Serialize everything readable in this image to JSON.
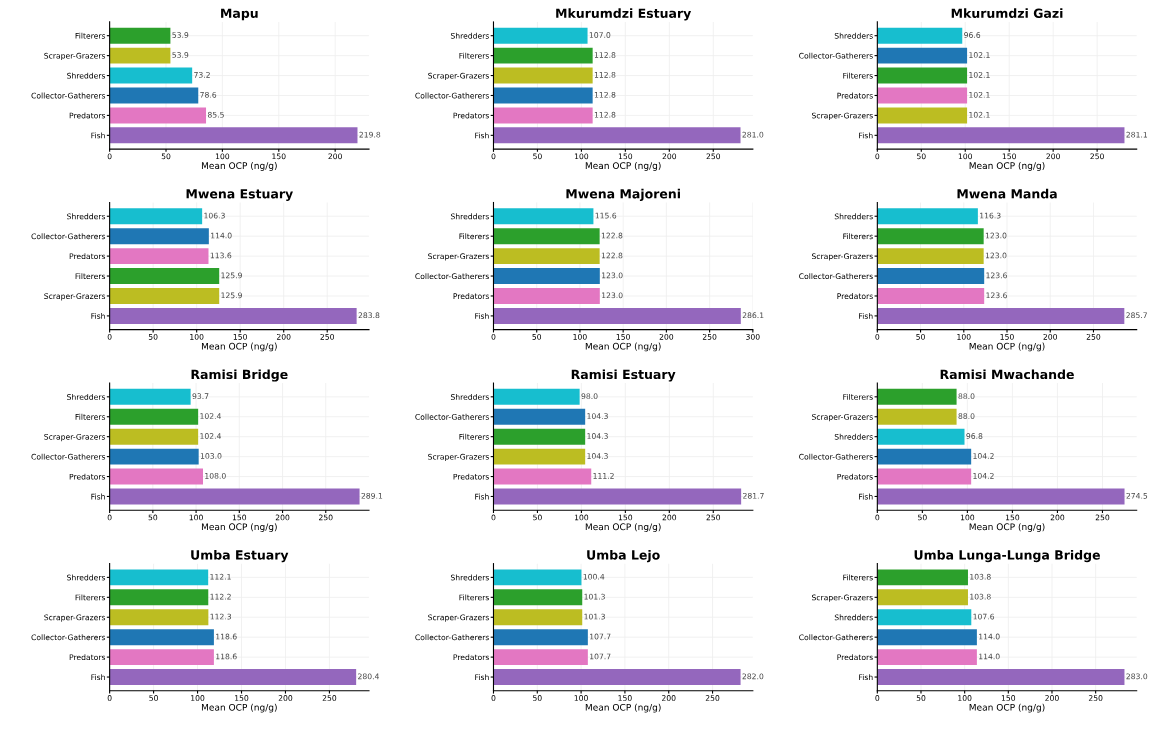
{
  "chart_data": [
    {
      "type": "bar",
      "orientation": "horizontal",
      "title": "Mapu",
      "xlabel": "Mean OCP (ng/g)",
      "categories": [
        "Filterers",
        "Scraper-Grazers",
        "Shredders",
        "Collector-Gatherers",
        "Predators",
        "Fish"
      ],
      "values": [
        53.9,
        53.9,
        73.2,
        78.6,
        85.5,
        219.8
      ],
      "value_labels": [
        "53.9",
        "53.9",
        "73.2",
        "78.6",
        "85.5",
        "219.8"
      ],
      "colors": [
        "#2ca02c",
        "#bcbd22",
        "#17becf",
        "#1f77b4",
        "#e377c2",
        "#9467bd"
      ],
      "xlim": [
        0,
        230
      ],
      "xticks": [
        0,
        50,
        100,
        150,
        200
      ],
      "grid": true
    },
    {
      "type": "bar",
      "orientation": "horizontal",
      "title": "Mkurumdzi Estuary",
      "xlabel": "Mean OCP (ng/g)",
      "categories": [
        "Shredders",
        "Filterers",
        "Scraper-Grazers",
        "Collector-Gatherers",
        "Predators",
        "Fish"
      ],
      "values": [
        107,
        112.8,
        112.8,
        112.8,
        112.8,
        281
      ],
      "value_labels": [
        "107.0",
        "112.8",
        "112.8",
        "112.8",
        "112.8",
        "281.0"
      ],
      "colors": [
        "#17becf",
        "#2ca02c",
        "#bcbd22",
        "#1f77b4",
        "#e377c2",
        "#9467bd"
      ],
      "xlim": [
        0,
        295
      ],
      "xticks": [
        0,
        50,
        100,
        150,
        200,
        250
      ],
      "grid": true
    },
    {
      "type": "bar",
      "orientation": "horizontal",
      "title": "Mkurumdzi Gazi",
      "xlabel": "Mean OCP (ng/g)",
      "categories": [
        "Shredders",
        "Collector-Gatherers",
        "Filterers",
        "Predators",
        "Scraper-Grazers",
        "Fish"
      ],
      "values": [
        96.6,
        102.1,
        102.1,
        102.1,
        102.1,
        281.1
      ],
      "value_labels": [
        "96.6",
        "102.1",
        "102.1",
        "102.1",
        "102.1",
        "281.1"
      ],
      "colors": [
        "#17becf",
        "#1f77b4",
        "#2ca02c",
        "#e377c2",
        "#bcbd22",
        "#9467bd"
      ],
      "xlim": [
        0,
        295
      ],
      "xticks": [
        0,
        50,
        100,
        150,
        200,
        250
      ],
      "grid": true
    },
    {
      "type": "bar",
      "orientation": "horizontal",
      "title": "Mwena Estuary",
      "xlabel": "Mean OCP (ng/g)",
      "categories": [
        "Shredders",
        "Collector-Gatherers",
        "Predators",
        "Filterers",
        "Scraper-Grazers",
        "Fish"
      ],
      "values": [
        106.3,
        114,
        113.6,
        125.9,
        125.9,
        283.8
      ],
      "value_labels": [
        "106.3",
        "114.0",
        "113.6",
        "125.9",
        "125.9",
        "283.8"
      ],
      "colors": [
        "#17becf",
        "#1f77b4",
        "#e377c2",
        "#2ca02c",
        "#bcbd22",
        "#9467bd"
      ],
      "xlim": [
        0,
        298
      ],
      "xticks": [
        0,
        50,
        100,
        150,
        200,
        250
      ],
      "grid": true
    },
    {
      "type": "bar",
      "orientation": "horizontal",
      "title": "Mwena Majoreni",
      "xlabel": "Mean OCP (ng/g)",
      "categories": [
        "Shredders",
        "Filterers",
        "Scraper-Grazers",
        "Collector-Gatherers",
        "Predators",
        "Fish"
      ],
      "values": [
        115.6,
        122.8,
        122.8,
        123,
        123,
        286.1
      ],
      "value_labels": [
        "115.6",
        "122.8",
        "122.8",
        "123.0",
        "123.0",
        "286.1"
      ],
      "colors": [
        "#17becf",
        "#2ca02c",
        "#bcbd22",
        "#1f77b4",
        "#e377c2",
        "#9467bd"
      ],
      "xlim": [
        0,
        300
      ],
      "xticks": [
        0,
        50,
        100,
        150,
        200,
        250,
        300
      ],
      "grid": true
    },
    {
      "type": "bar",
      "orientation": "horizontal",
      "title": "Mwena Manda",
      "xlabel": "Mean OCP (ng/g)",
      "categories": [
        "Shredders",
        "Filterers",
        "Scraper-Grazers",
        "Collector-Gatherers",
        "Predators",
        "Fish"
      ],
      "values": [
        116.3,
        123,
        123,
        123.6,
        123.6,
        285.7
      ],
      "value_labels": [
        "116.3",
        "123.0",
        "123.0",
        "123.6",
        "123.6",
        "285.7"
      ],
      "colors": [
        "#17becf",
        "#2ca02c",
        "#bcbd22",
        "#1f77b4",
        "#e377c2",
        "#9467bd"
      ],
      "xlim": [
        0,
        300
      ],
      "xticks": [
        0,
        50,
        100,
        150,
        200,
        250
      ],
      "grid": true
    },
    {
      "type": "bar",
      "orientation": "horizontal",
      "title": "Ramisi Bridge",
      "xlabel": "Mean OCP (ng/g)",
      "categories": [
        "Shredders",
        "Filterers",
        "Scraper-Grazers",
        "Collector-Gatherers",
        "Predators",
        "Fish"
      ],
      "values": [
        93.7,
        102.4,
        102.4,
        103,
        108,
        289.1
      ],
      "value_labels": [
        "93.7",
        "102.4",
        "102.4",
        "103.0",
        "108.0",
        "289.1"
      ],
      "colors": [
        "#17becf",
        "#2ca02c",
        "#bcbd22",
        "#1f77b4",
        "#e377c2",
        "#9467bd"
      ],
      "xlim": [
        0,
        300
      ],
      "xticks": [
        0,
        50,
        100,
        150,
        200,
        250
      ],
      "grid": true
    },
    {
      "type": "bar",
      "orientation": "horizontal",
      "title": "Ramisi Estuary",
      "xlabel": "Mean OCP (ng/g)",
      "categories": [
        "Shredders",
        "Collector-Gatherers",
        "Filterers",
        "Scraper-Grazers",
        "Predators",
        "Fish"
      ],
      "values": [
        98,
        104.3,
        104.3,
        104.3,
        111.2,
        281.7
      ],
      "value_labels": [
        "98.0",
        "104.3",
        "104.3",
        "104.3",
        "111.2",
        "281.7"
      ],
      "colors": [
        "#17becf",
        "#1f77b4",
        "#2ca02c",
        "#bcbd22",
        "#e377c2",
        "#9467bd"
      ],
      "xlim": [
        0,
        295
      ],
      "xticks": [
        0,
        50,
        100,
        150,
        200,
        250
      ],
      "grid": true
    },
    {
      "type": "bar",
      "orientation": "horizontal",
      "title": "Ramisi Mwachande",
      "xlabel": "Mean OCP (ng/g)",
      "categories": [
        "Filterers",
        "Scraper-Grazers",
        "Shredders",
        "Collector-Gatherers",
        "Predators",
        "Fish"
      ],
      "values": [
        88,
        88,
        96.8,
        104.2,
        104.2,
        274.5
      ],
      "value_labels": [
        "88.0",
        "88.0",
        "96.8",
        "104.2",
        "104.2",
        "274.5"
      ],
      "colors": [
        "#2ca02c",
        "#bcbd22",
        "#17becf",
        "#1f77b4",
        "#e377c2",
        "#9467bd"
      ],
      "xlim": [
        0,
        288
      ],
      "xticks": [
        0,
        50,
        100,
        150,
        200,
        250
      ],
      "grid": true
    },
    {
      "type": "bar",
      "orientation": "horizontal",
      "title": "Umba Estuary",
      "xlabel": "Mean OCP (ng/g)",
      "categories": [
        "Shredders",
        "Filterers",
        "Scraper-Grazers",
        "Collector-Gatherers",
        "Predators",
        "Fish"
      ],
      "values": [
        112.1,
        112.2,
        112.3,
        118.6,
        118.6,
        280.4
      ],
      "value_labels": [
        "112.1",
        "112.2",
        "112.3",
        "118.6",
        "118.6",
        "280.4"
      ],
      "colors": [
        "#17becf",
        "#2ca02c",
        "#bcbd22",
        "#1f77b4",
        "#e377c2",
        "#9467bd"
      ],
      "xlim": [
        0,
        295
      ],
      "xticks": [
        0,
        50,
        100,
        150,
        200,
        250
      ],
      "grid": true
    },
    {
      "type": "bar",
      "orientation": "horizontal",
      "title": "Umba Lejo",
      "xlabel": "Mean OCP (ng/g)",
      "categories": [
        "Shredders",
        "Filterers",
        "Scraper-Grazers",
        "Collector-Gatherers",
        "Predators",
        "Fish"
      ],
      "values": [
        100.4,
        101.3,
        101.3,
        107.7,
        107.7,
        282
      ],
      "value_labels": [
        "100.4",
        "101.3",
        "101.3",
        "107.7",
        "107.7",
        "282.0"
      ],
      "colors": [
        "#17becf",
        "#2ca02c",
        "#bcbd22",
        "#1f77b4",
        "#e377c2",
        "#9467bd"
      ],
      "xlim": [
        0,
        296
      ],
      "xticks": [
        0,
        50,
        100,
        150,
        200,
        250
      ],
      "grid": true
    },
    {
      "type": "bar",
      "orientation": "horizontal",
      "title": "Umba Lunga-Lunga Bridge",
      "xlabel": "Mean OCP (ng/g)",
      "categories": [
        "Filterers",
        "Scraper-Grazers",
        "Shredders",
        "Collector-Gatherers",
        "Predators",
        "Fish"
      ],
      "values": [
        103.8,
        103.8,
        107.6,
        114,
        114,
        283
      ],
      "value_labels": [
        "103.8",
        "103.8",
        "107.6",
        "114.0",
        "114.0",
        "283.0"
      ],
      "colors": [
        "#2ca02c",
        "#bcbd22",
        "#17becf",
        "#1f77b4",
        "#e377c2",
        "#9467bd"
      ],
      "xlim": [
        0,
        297
      ],
      "xticks": [
        0,
        50,
        100,
        150,
        200,
        250
      ],
      "grid": true
    }
  ]
}
